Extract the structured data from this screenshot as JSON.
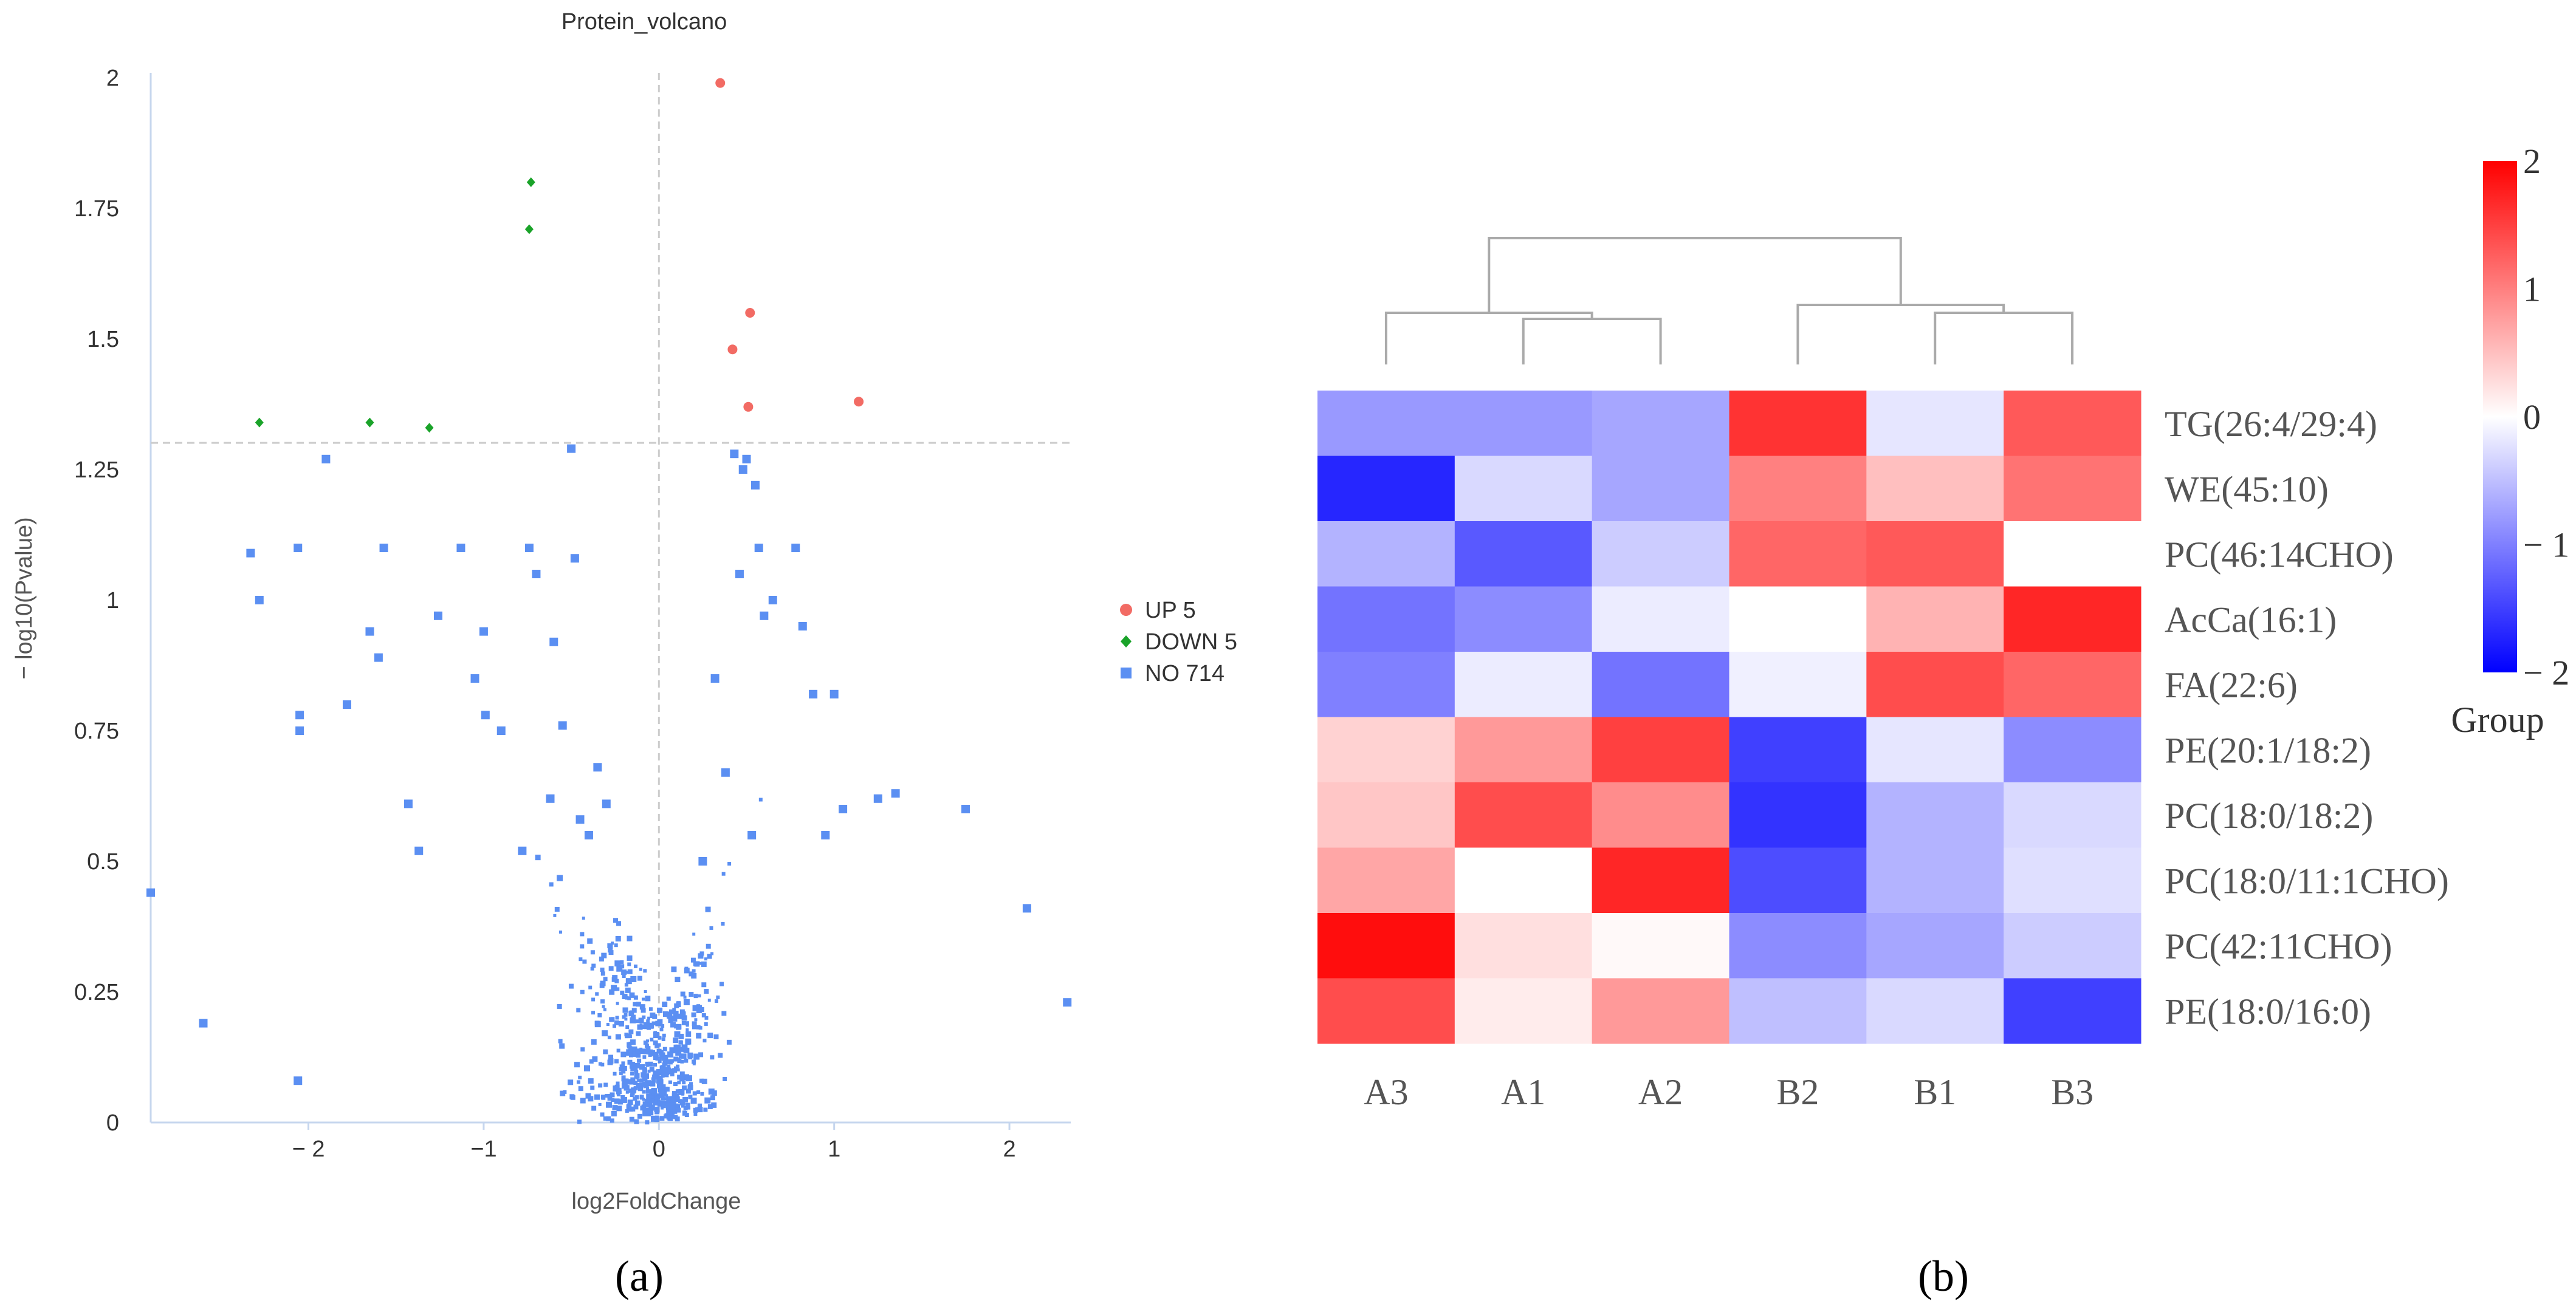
{
  "panels": {
    "a_label": "(a)",
    "b_label": "(b)"
  },
  "chart_data": [
    {
      "type": "scatter",
      "title": "Protein_volcano",
      "xlabel": "log2FoldChange",
      "ylabel": "− log10(Pvalue)",
      "xlim": [
        -2.9,
        2.35
      ],
      "ylim": [
        0,
        2.0
      ],
      "x_ticks": [
        -2,
        -1,
        0,
        1,
        2
      ],
      "x_tick_labels": [
        "− 2",
        "−1",
        "0",
        "1",
        "2"
      ],
      "y_ticks": [
        0,
        0.25,
        0.5,
        0.75,
        1,
        1.25,
        1.5,
        1.75,
        2
      ],
      "y_tick_labels": [
        "0",
        "0.25",
        "0.5",
        "0.75",
        "1",
        "1.25",
        "1.5",
        "1.75",
        "2"
      ],
      "threshold_y": 1.301,
      "threshold_x": 0,
      "legend_position": "right",
      "colors": {
        "up": "#f26b64",
        "down": "#1aa329",
        "no": "#5b8ff2",
        "guide": "#cccccc",
        "axis": "#c6d6ee"
      },
      "series": [
        {
          "name": "UP",
          "legend": "UP 5",
          "count": 5,
          "marker": "circle",
          "x": [
            0.35,
            0.42,
            0.52,
            0.51,
            1.14
          ],
          "y": [
            1.99,
            1.48,
            1.55,
            1.37,
            1.38
          ]
        },
        {
          "name": "DOWN",
          "legend": "DOWN 5",
          "count": 5,
          "marker": "diamond",
          "x": [
            -0.73,
            -0.74,
            -2.28,
            -1.65,
            -1.31
          ],
          "y": [
            1.8,
            1.71,
            1.34,
            1.34,
            1.33
          ]
        },
        {
          "name": "NO",
          "legend": "NO 714",
          "count": 714,
          "marker": "square",
          "x": [
            -2.9,
            -2.33,
            -2.28,
            -2.06,
            -2.05,
            -2.05,
            -1.9,
            -1.78,
            -1.65,
            -1.6,
            -1.57,
            -1.43,
            -1.37,
            -1.26,
            -1.13,
            -1.05,
            -1.0,
            -0.99,
            -0.9,
            -0.78,
            -0.74,
            -0.7,
            -0.62,
            -0.6,
            -0.55,
            -0.5,
            -0.48,
            -0.45,
            -0.4,
            -0.35,
            -0.3,
            0.25,
            0.32,
            0.38,
            0.43,
            0.48,
            0.5,
            0.55,
            0.57,
            0.6,
            0.65,
            0.78,
            0.82,
            0.88,
            0.95,
            1.0,
            1.05,
            1.25,
            1.35,
            1.75,
            2.1,
            2.33,
            0.07,
            -0.07,
            0.46,
            0.53,
            -2.6,
            -2.06
          ],
          "y": [
            0.44,
            1.09,
            1.0,
            1.1,
            0.78,
            0.75,
            1.27,
            0.8,
            0.94,
            0.89,
            1.1,
            0.61,
            0.52,
            0.97,
            1.1,
            0.85,
            0.94,
            0.78,
            0.75,
            0.52,
            1.1,
            1.05,
            0.62,
            0.92,
            0.76,
            1.29,
            1.08,
            0.58,
            0.55,
            0.68,
            0.61,
            0.5,
            0.85,
            0.67,
            1.28,
            1.25,
            1.27,
            1.22,
            1.1,
            0.97,
            1.0,
            1.1,
            0.95,
            0.82,
            0.55,
            0.82,
            0.6,
            0.62,
            0.63,
            0.6,
            0.41,
            0.23,
            0.03,
            0.02,
            1.05,
            0.55,
            0.19,
            0.08
          ]
        }
      ]
    },
    {
      "type": "heatmap",
      "columns": [
        "A3",
        "A1",
        "A2",
        "B2",
        "B1",
        "B3"
      ],
      "rows": [
        "TG(26:4/29:4)",
        "WE(45:10)",
        "PC(46:14CHO)",
        "AcCa(16:1)",
        "FA(22:6)",
        "PE(20:1/18:2)",
        "PC(18:0/18:2)",
        "PC(18:0/11:1CHO)",
        "PC(42:11CHO)",
        "PE(18:0/16:0)"
      ],
      "values": [
        [
          -0.8,
          -0.8,
          -0.7,
          1.6,
          -0.2,
          1.3
        ],
        [
          -1.7,
          -0.3,
          -0.7,
          1.0,
          0.5,
          1.1
        ],
        [
          -0.6,
          -1.3,
          -0.4,
          1.2,
          1.3,
          0.0
        ],
        [
          -1.1,
          -0.9,
          -0.15,
          0.0,
          0.6,
          1.7
        ],
        [
          -1.0,
          -0.15,
          -1.1,
          -0.12,
          1.4,
          1.2
        ],
        [
          0.35,
          0.8,
          1.5,
          -1.5,
          -0.2,
          -0.9
        ],
        [
          0.45,
          1.4,
          0.9,
          -1.6,
          -0.6,
          -0.3
        ],
        [
          0.7,
          0.0,
          1.7,
          -1.4,
          -0.6,
          -0.25
        ],
        [
          1.9,
          0.25,
          0.05,
          -0.9,
          -0.7,
          -0.4
        ],
        [
          1.4,
          0.15,
          0.8,
          -0.5,
          -0.3,
          -1.5
        ]
      ],
      "column_dendrogram": {
        "order": [
          "A3",
          "A1",
          "A2",
          "B2",
          "B1",
          "B3"
        ]
      },
      "colorbar": {
        "title": "Group",
        "range": [
          -2,
          2
        ],
        "ticks": [
          2,
          1,
          0,
          -1,
          -2
        ],
        "tick_labels": [
          "2",
          "1",
          "0",
          "− 1",
          "− 2"
        ],
        "colors": {
          "low": "#0000ff",
          "mid": "#ffffff",
          "high": "#ff0000"
        }
      }
    }
  ]
}
